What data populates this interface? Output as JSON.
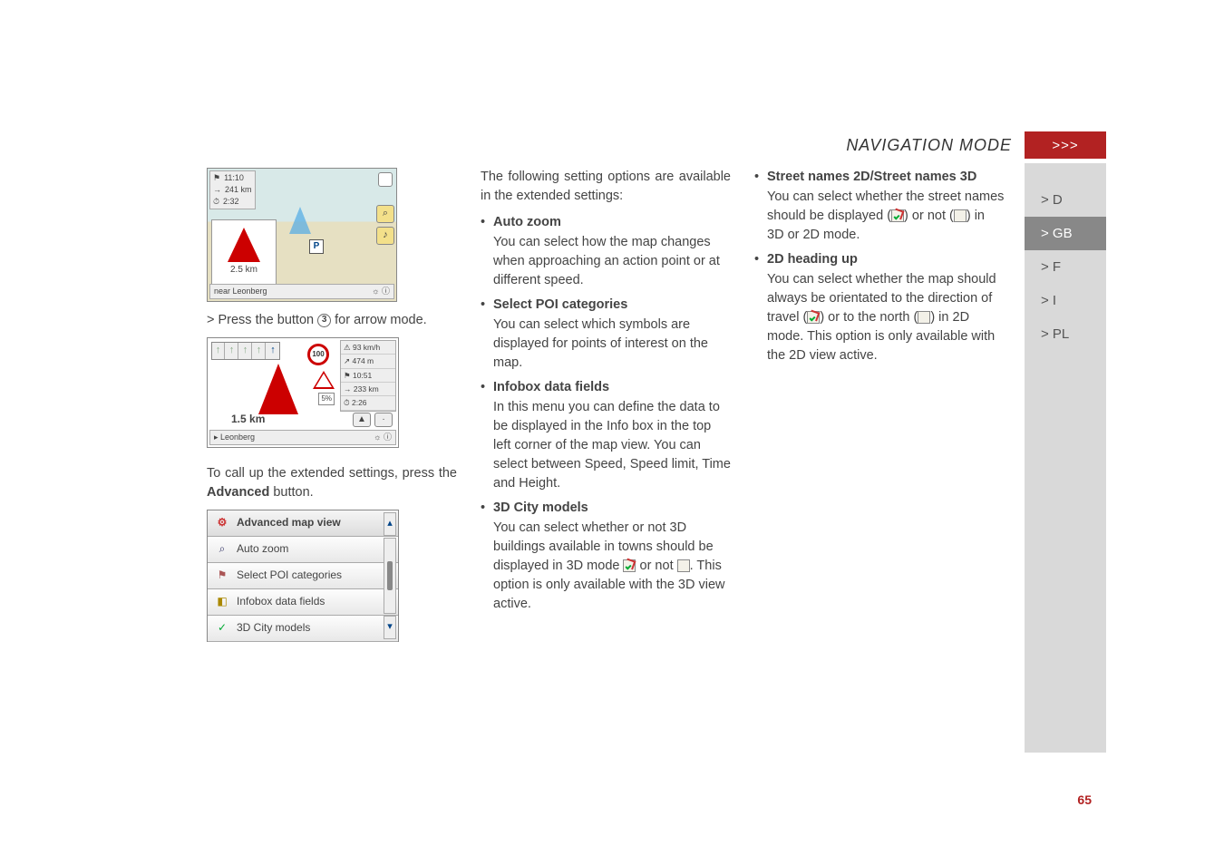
{
  "header": {
    "title": "NAVIGATION MODE",
    "chevrons": ">>>"
  },
  "sidebar": {
    "items": [
      {
        "label": "> D",
        "active": false
      },
      {
        "label": "> GB",
        "active": true
      },
      {
        "label": "> F",
        "active": false
      },
      {
        "label": "> I",
        "active": false
      },
      {
        "label": "> PL",
        "active": false
      }
    ]
  },
  "page_number": "65",
  "col1": {
    "map1": {
      "info_rows": [
        "11:10",
        "241 km",
        "2:32"
      ],
      "info_icons": [
        "⚑",
        "→",
        "⏱"
      ],
      "p_label": "P",
      "dist": "2.5 km",
      "bottom_left": "near Leonberg",
      "right_icons": [
        "⌕",
        "♪"
      ],
      "colors": {
        "arrow": "#c00",
        "road": "#d4c98c"
      }
    },
    "press_line_pre": "> Press the button ",
    "press_line_num": "3",
    "press_line_post": " for arrow mode.",
    "map2": {
      "lane_arrows": [
        "↑",
        "↑",
        "↑",
        "↑",
        "↑"
      ],
      "circle": "100",
      "dist": "1.5 km",
      "bottom_left": "▸ Leonberg",
      "right_info": [
        "⚠ 93 km/h",
        "↗ 474 m",
        "⚑ 10:51",
        "→ 233 km",
        "⏱ 2:26"
      ],
      "pct": "5%"
    },
    "extended_line_1": "To call up the extended settings, press the ",
    "extended_bold": "Advanced",
    "extended_line_2": " button.",
    "menu_rows": [
      {
        "icon": "⚙",
        "icon_color": "#c33",
        "label": "Advanced map view"
      },
      {
        "icon": "⌕",
        "icon_color": "#336",
        "label": "Auto zoom"
      },
      {
        "icon": "⚑",
        "icon_color": "#a55",
        "label": "Select POI categories"
      },
      {
        "icon": "◧",
        "icon_color": "#a80",
        "label": "Infobox data fields"
      },
      {
        "icon": "✓",
        "icon_color": "#0a3",
        "label": "3D City models"
      }
    ]
  },
  "col2": {
    "intro": "The following setting options are available in the extended settings:",
    "items": [
      {
        "title": "Auto zoom",
        "desc": "You can select how the map changes when approaching an action point or at different speed."
      },
      {
        "title": "Select POI categories",
        "desc": "You can select which symbols are displayed for points of interest on the map."
      },
      {
        "title": "Infobox data fields",
        "desc": "In this menu you can define the data to be displayed in the Info box in the top left corner of the map view. You can select between Speed, Speed limit, Time and Height."
      },
      {
        "title": "3D City models",
        "desc_pre": "You can select whether or not 3D buildings available in towns should be displayed in 3D mode ",
        "desc_mid": " or not ",
        "desc_post": ". This option is only available with the 3D view active."
      }
    ]
  },
  "col3": {
    "items": [
      {
        "title": "Street names 2D/Street names 3D",
        "desc_pre": "You can select whether the street names should be displayed (",
        "desc_mid": ") or not (",
        "desc_post": ") in 3D or 2D mode."
      },
      {
        "title": "2D heading up",
        "desc_pre": "You can select whether the map should always be orientated to the direction of travel (",
        "desc_mid": ") or to the north (",
        "desc_post": ") in 2D mode. This option is only available with the 2D view active."
      }
    ]
  }
}
